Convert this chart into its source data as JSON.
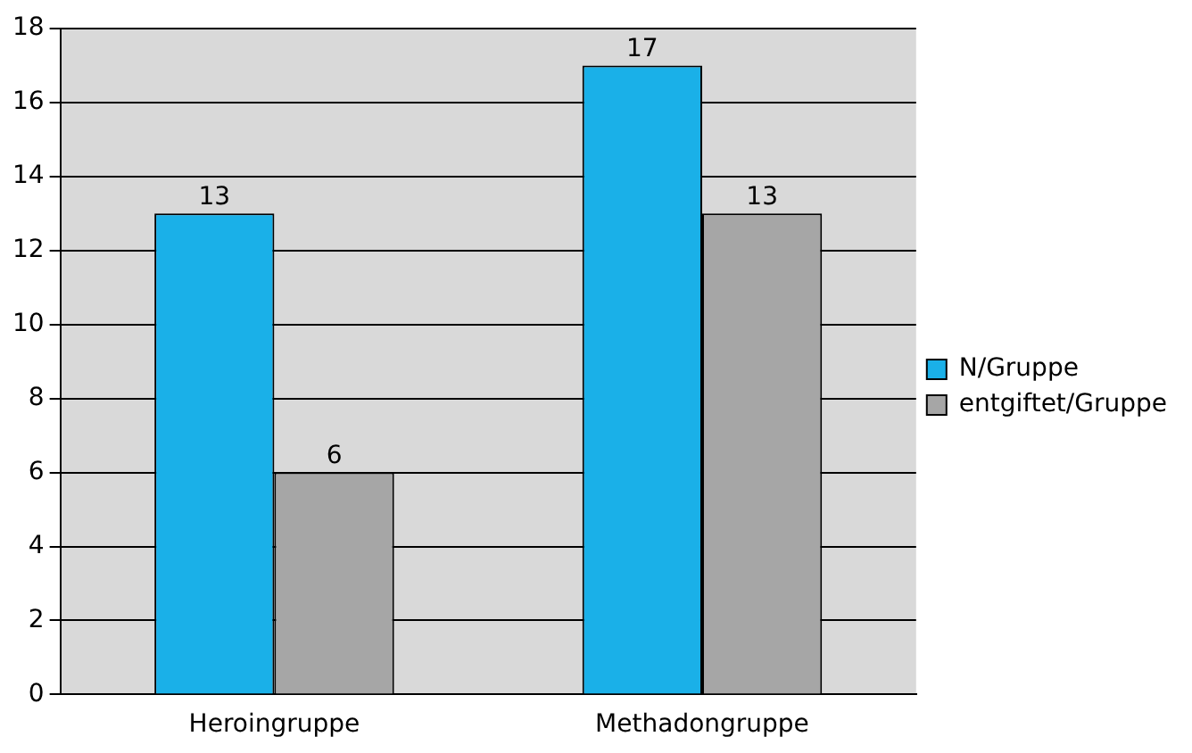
{
  "chart_data": {
    "type": "bar",
    "categories": [
      "Heroingruppe",
      "Methadongruppe"
    ],
    "series": [
      {
        "name": "N/Gruppe",
        "color": "#1ab0e8",
        "values": [
          13,
          17
        ]
      },
      {
        "name": "entgiftet/Gruppe",
        "color": "#a6a6a6",
        "values": [
          6,
          13
        ]
      }
    ],
    "ylim": [
      0,
      18
    ],
    "yticks": [
      0,
      2,
      4,
      6,
      8,
      10,
      12,
      14,
      16,
      18
    ],
    "grid": "y",
    "legend": "right",
    "data_labels": true
  }
}
